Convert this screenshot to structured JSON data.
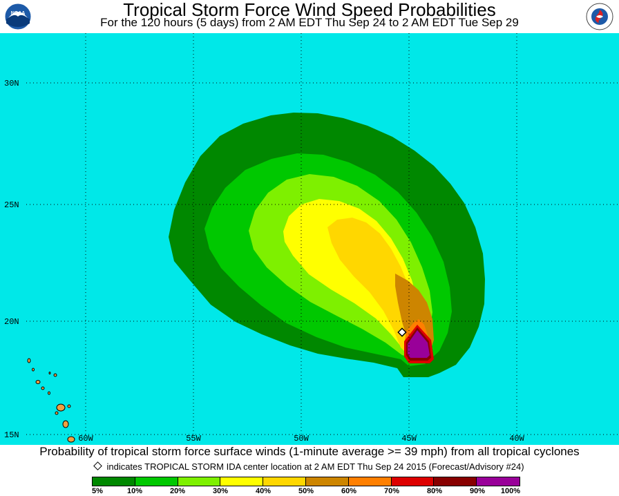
{
  "header": {
    "title": "Tropical Storm Force Wind Speed Probabilities",
    "subtitle": "For the 120 hours (5 days) from 2 AM EDT Thu Sep 24 to 2 AM EDT Tue Sep 29",
    "left_logo": "NOAA",
    "right_logo": "NATIONAL WEATHER SERVICE"
  },
  "map": {
    "ocean_color": "#00e8e8",
    "land_color": "#f0a040",
    "lat_labels": [
      "30N",
      "25N",
      "20N",
      "15N"
    ],
    "lon_labels": [
      "60W",
      "55W",
      "50W",
      "45W",
      "40W"
    ]
  },
  "footer": {
    "caption": "Probability of tropical storm force surface winds (1-minute average >= 39 mph) from all tropical cyclones",
    "center_note": "indicates TROPICAL STORM IDA center location at 2 AM EDT Thu Sep 24 2015 (Forecast/Advisory #24)"
  },
  "legend": {
    "labels": [
      "5%",
      "10%",
      "20%",
      "30%",
      "40%",
      "50%",
      "60%",
      "70%",
      "80%",
      "90%",
      "100%"
    ],
    "colors": [
      "#008800",
      "#00c800",
      "#7ef000",
      "#ffff00",
      "#ffd700",
      "#cd8500",
      "#ff7f00",
      "#dd0000",
      "#880000",
      "#990099"
    ]
  }
}
